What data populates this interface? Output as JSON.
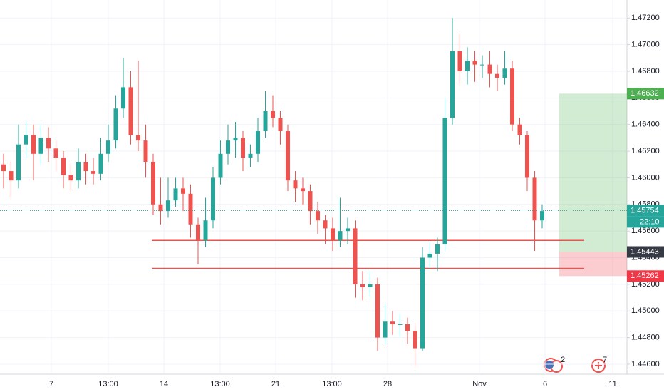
{
  "chart_data": {
    "type": "candlestick",
    "up_color": "#26a69a",
    "down_color": "#ef5350",
    "open": [
      1.461,
      1.4605,
      1.4598,
      1.4625,
      1.4632,
      1.4618,
      1.463,
      1.4622,
      1.4615,
      1.4602,
      1.4598,
      1.4612,
      1.4605,
      1.4603,
      1.4618,
      1.4628,
      1.4652,
      1.4668,
      1.4632,
      1.4628,
      1.4612,
      1.458,
      1.4575,
      1.4583,
      1.4592,
      1.4588,
      1.4565,
      1.4553,
      1.4568,
      1.46,
      1.4618,
      1.4628,
      1.463,
      1.4615,
      1.4618,
      1.4635,
      1.465,
      1.4645,
      1.4635,
      1.4598,
      1.4592,
      1.459,
      1.4575,
      1.4568,
      1.4562,
      1.4553,
      1.456,
      1.4562,
      1.452,
      1.4518,
      1.452,
      1.448,
      1.4492,
      1.449,
      1.449,
      1.4485,
      1.4472,
      1.454,
      1.4543,
      1.455,
      1.4645,
      1.4695,
      1.468,
      1.4688,
      1.4685,
      1.4685,
      1.4678,
      1.4675,
      1.4682,
      1.464,
      1.4632,
      1.46,
      1.4568
    ],
    "high": [
      1.4618,
      1.4612,
      1.464,
      1.4642,
      1.464,
      1.464,
      1.4638,
      1.4628,
      1.462,
      1.461,
      1.4622,
      1.4618,
      1.4615,
      1.463,
      1.464,
      1.4662,
      1.469,
      1.468,
      1.4688,
      1.464,
      1.4618,
      1.46,
      1.46,
      1.46,
      1.46,
      1.4595,
      1.457,
      1.4585,
      1.4608,
      1.4628,
      1.464,
      1.4642,
      1.4635,
      1.4625,
      1.4645,
      1.4665,
      1.4662,
      1.465,
      1.464,
      1.4605,
      1.46,
      1.4595,
      1.4582,
      1.4572,
      1.457,
      1.4585,
      1.457,
      1.4568,
      1.453,
      1.453,
      1.4525,
      1.4505,
      1.45,
      1.4498,
      1.4495,
      1.449,
      1.4548,
      1.4552,
      1.4555,
      1.466,
      1.472,
      1.4708,
      1.4698,
      1.4695,
      1.4692,
      1.4695,
      1.4685,
      1.4695,
      1.4688,
      1.4645,
      1.4635,
      1.4605,
      1.458
    ],
    "low": [
      1.4592,
      1.4585,
      1.4592,
      1.4615,
      1.4598,
      1.461,
      1.4612,
      1.4605,
      1.4592,
      1.459,
      1.4592,
      1.4595,
      1.4595,
      1.4598,
      1.4612,
      1.4622,
      1.4645,
      1.4625,
      1.462,
      1.46,
      1.4572,
      1.4565,
      1.457,
      1.4578,
      1.4575,
      1.4555,
      1.4535,
      1.4548,
      1.4562,
      1.4595,
      1.461,
      1.4615,
      1.4605,
      1.4608,
      1.4612,
      1.463,
      1.4638,
      1.4625,
      1.459,
      1.4582,
      1.458,
      1.4565,
      1.4558,
      1.455,
      1.4545,
      1.4548,
      1.455,
      1.451,
      1.4508,
      1.451,
      1.447,
      1.4475,
      1.4482,
      1.448,
      1.4475,
      1.4458,
      1.447,
      1.4532,
      1.453,
      1.4545,
      1.464,
      1.467,
      1.467,
      1.4672,
      1.4675,
      1.4668,
      1.4665,
      1.467,
      1.4635,
      1.4625,
      1.459,
      1.4545,
      1.4562
    ],
    "close": [
      1.4605,
      1.4598,
      1.4625,
      1.4632,
      1.4618,
      1.463,
      1.4622,
      1.4615,
      1.4602,
      1.4598,
      1.4612,
      1.4605,
      1.4603,
      1.4618,
      1.4628,
      1.4652,
      1.4668,
      1.4632,
      1.4628,
      1.4612,
      1.458,
      1.4575,
      1.4583,
      1.4592,
      1.4588,
      1.4565,
      1.4553,
      1.4568,
      1.46,
      1.4618,
      1.4628,
      1.463,
      1.4615,
      1.4618,
      1.4635,
      1.465,
      1.4645,
      1.4635,
      1.4598,
      1.4592,
      1.459,
      1.4575,
      1.4568,
      1.4562,
      1.4553,
      1.456,
      1.4562,
      1.452,
      1.4518,
      1.452,
      1.448,
      1.4492,
      1.449,
      1.449,
      1.4485,
      1.4472,
      1.454,
      1.4543,
      1.455,
      1.4645,
      1.4695,
      1.468,
      1.4688,
      1.4685,
      1.4685,
      1.4678,
      1.4675,
      1.4682,
      1.464,
      1.4632,
      1.46,
      1.4568,
      1.4575
    ],
    "ylim": [
      1.44525,
      1.47335
    ],
    "yticks": [
      {
        "value": 1.446,
        "label": "1.44600"
      },
      {
        "value": 1.448,
        "label": "1.44800"
      },
      {
        "value": 1.45,
        "label": "1.45000"
      },
      {
        "value": 1.452,
        "label": "1.45200"
      },
      {
        "value": 1.454,
        "label": "1.45400"
      },
      {
        "value": 1.456,
        "label": "1.45600"
      },
      {
        "value": 1.458,
        "label": "1.45800"
      },
      {
        "value": 1.46,
        "label": "1.46000"
      },
      {
        "value": 1.462,
        "label": "1.46200"
      },
      {
        "value": 1.464,
        "label": "1.46400"
      },
      {
        "value": 1.466,
        "label": "1.46600"
      },
      {
        "value": 1.468,
        "label": "1.46800"
      },
      {
        "value": 1.47,
        "label": "1.47000"
      },
      {
        "value": 1.472,
        "label": "1.47200"
      }
    ],
    "xticks": [
      "7",
      "13:00",
      "14",
      "13:00",
      "21",
      "13:00",
      "28",
      "Nov",
      "6",
      "11"
    ],
    "grid": true,
    "current_price": 1.45754,
    "countdown": "22:10",
    "horizontal_lines": [
      1.4553,
      1.4532
    ],
    "position": {
      "target": 1.46632,
      "entry": 1.45443,
      "stop": 1.45262
    },
    "events": [
      "2",
      "7"
    ]
  }
}
